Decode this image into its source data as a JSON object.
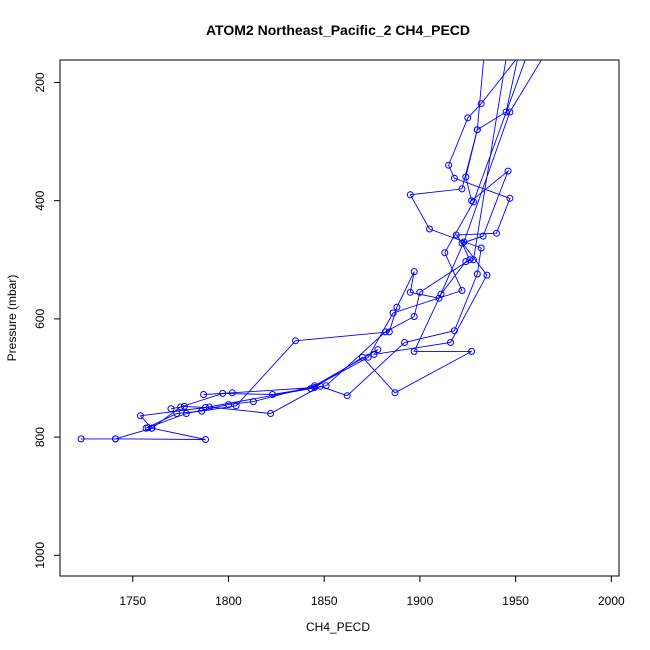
{
  "chart_data": {
    "type": "scatter",
    "title": "ATOM2 Northeast_Pacific_2 CH4_PECD",
    "xlabel": "CH4_PECD",
    "ylabel": "Pressure (mbar)",
    "xlim": [
      1712,
      2004
    ],
    "ylim": [
      1035,
      162
    ],
    "y_inverted": true,
    "grid": false,
    "legend": "none",
    "xticks": [
      1750,
      1800,
      1850,
      1900,
      1950,
      2000
    ],
    "yticks": [
      200,
      400,
      600,
      800,
      1000
    ],
    "colors": {
      "series": "#0000ff",
      "axis": "#000000"
    },
    "series": [
      {
        "values": [
          [
            1965,
            100
          ],
          [
            1932,
            236
          ],
          [
            1925,
            260
          ],
          [
            1915,
            340
          ],
          [
            1918,
            362
          ],
          [
            1947,
            396
          ],
          [
            1940,
            455
          ],
          [
            1919,
            458
          ],
          [
            1935,
            526
          ],
          [
            1916,
            640
          ],
          [
            1876,
            660
          ],
          [
            1878,
            652
          ],
          [
            1845,
            713
          ],
          [
            1813,
            740
          ],
          [
            1800,
            745
          ],
          [
            1778,
            760
          ],
          [
            1758,
            784
          ],
          [
            1760,
            785
          ],
          [
            1788,
            804
          ],
          [
            1741,
            803
          ],
          [
            1723,
            803
          ]
        ]
      },
      {
        "values": [
          [
            1955,
            100
          ],
          [
            1945,
            250
          ],
          [
            1930,
            280
          ],
          [
            1924,
            360
          ],
          [
            1927,
            400
          ],
          [
            1946,
            350
          ],
          [
            1933,
            460
          ],
          [
            1922,
            472
          ],
          [
            1926,
            500
          ],
          [
            1900,
            555
          ],
          [
            1897,
            596
          ],
          [
            1882,
            622
          ],
          [
            1851,
            713
          ],
          [
            1823,
            728
          ],
          [
            1797,
            726
          ],
          [
            1775,
            749
          ],
          [
            1760,
            785
          ],
          [
            1741,
            803
          ]
        ]
      },
      {
        "values": [
          [
            1935,
            100
          ],
          [
            1930,
            280
          ],
          [
            1922,
            380
          ],
          [
            1895,
            390
          ],
          [
            1905,
            448
          ],
          [
            1932,
            480
          ],
          [
            1930,
            524
          ],
          [
            1918,
            620
          ],
          [
            1892,
            640
          ],
          [
            1862,
            730
          ],
          [
            1848,
            714
          ],
          [
            1822,
            760
          ],
          [
            1790,
            749
          ],
          [
            1754,
            764
          ],
          [
            1760,
            785
          ]
        ]
      },
      {
        "values": [
          [
            1975,
            100
          ],
          [
            1947,
            250
          ],
          [
            1923,
            470
          ],
          [
            1910,
            565
          ],
          [
            1895,
            555
          ],
          [
            1897,
            520
          ],
          [
            1888,
            580
          ],
          [
            1884,
            622
          ],
          [
            1835,
            637
          ],
          [
            1804,
            747
          ],
          [
            1786,
            756
          ],
          [
            1773,
            760
          ],
          [
            1757,
            785
          ]
        ]
      },
      {
        "values": [
          [
            1962,
            100
          ],
          [
            1928,
            402
          ],
          [
            1913,
            488
          ],
          [
            1922,
            552
          ],
          [
            1886,
            590
          ],
          [
            1873,
            665
          ],
          [
            1843,
            718
          ],
          [
            1788,
            750
          ],
          [
            1777,
            748
          ],
          [
            1770,
            752
          ]
        ]
      },
      {
        "values": [
          [
            1948,
            100
          ],
          [
            1928,
            500
          ],
          [
            1924,
            503
          ],
          [
            1911,
            558
          ],
          [
            1897,
            655
          ],
          [
            1927,
            655
          ],
          [
            1887,
            725
          ],
          [
            1870,
            665
          ],
          [
            1845,
            716
          ],
          [
            1802,
            725
          ],
          [
            1787,
            728
          ]
        ]
      }
    ]
  }
}
